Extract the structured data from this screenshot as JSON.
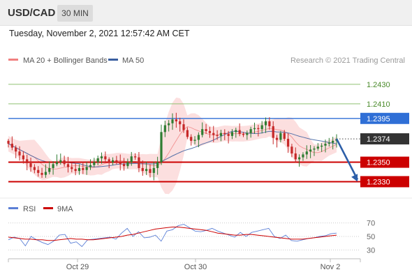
{
  "header": {
    "symbol": "USD/CAD",
    "timeframe": "30 MIN"
  },
  "timestamp": "Tuesday, November 2, 2021 12:57:42 AM CET",
  "legend": {
    "bollinger_label": "MA 20 + Bollinger Bands",
    "ma50_label": "MA 50",
    "rsi_label": "RSI",
    "rsi_ma_label": "9MA"
  },
  "copyright": "Research © 2021 Trading Central",
  "colors": {
    "bollinger": "#f08080",
    "ma50": "#3a5fa0",
    "support": "#cc0000",
    "resistance_blue": "#2f6fd6",
    "resistance_green": "#8fc070",
    "bull_candle": "#2e7d32",
    "bear_candle": "#c62828",
    "current_price_bg": "#333333",
    "arrow": "#2d5fa8"
  },
  "chart_data": [
    {
      "type": "candlestick",
      "title": "USD/CAD 30 MIN",
      "ylim": [
        1.2316,
        1.2445
      ],
      "x_tick_labels": [
        "Oct 29",
        "Oct 30",
        "Nov 2"
      ],
      "levels": [
        {
          "value": 1.243,
          "label": "1.2430",
          "kind": "resistance"
        },
        {
          "value": 1.241,
          "label": "1.2410",
          "kind": "resistance"
        },
        {
          "value": 1.2395,
          "label": "1.2395",
          "kind": "pivot"
        },
        {
          "value": 1.2374,
          "label": "1.2374",
          "kind": "current"
        },
        {
          "value": 1.235,
          "label": "1.2350",
          "kind": "support"
        },
        {
          "value": 1.233,
          "label": "1.2330",
          "kind": "target"
        }
      ],
      "close_series": [
        1.2369,
        1.2365,
        1.2361,
        1.2357,
        1.2353,
        1.2349,
        1.2345,
        1.2342,
        1.2339,
        1.2337,
        1.234,
        1.2344,
        1.2348,
        1.235,
        1.2352,
        1.2348,
        1.2345,
        1.2343,
        1.2341,
        1.2344,
        1.2342,
        1.2345,
        1.2347,
        1.235,
        1.2354,
        1.2356,
        1.2353,
        1.235,
        1.2352,
        1.235,
        1.2348,
        1.2346,
        1.235,
        1.2356,
        1.2355,
        1.2344,
        1.2341,
        1.2343,
        1.2339,
        1.2344,
        1.235,
        1.2381,
        1.2388,
        1.239,
        1.2394,
        1.2392,
        1.2389,
        1.2383,
        1.2376,
        1.2372,
        1.2373,
        1.2378,
        1.2384,
        1.2382,
        1.238,
        1.2378,
        1.2377,
        1.238,
        1.2379,
        1.2377,
        1.2381,
        1.2383,
        1.2379,
        1.2378,
        1.238,
        1.2384,
        1.2385,
        1.2384,
        1.2388,
        1.2392,
        1.2387,
        1.2375,
        1.2373,
        1.238,
        1.2374,
        1.2366,
        1.2359,
        1.2353,
        1.2355,
        1.2358,
        1.2361,
        1.2363,
        1.2364,
        1.2366,
        1.2367,
        1.2369,
        1.237,
        1.2372,
        1.2374
      ],
      "projection": {
        "from": 1.2374,
        "to": 1.233,
        "direction": "down"
      }
    },
    {
      "type": "line",
      "title": "RSI",
      "ylim": [
        20,
        80
      ],
      "y_ticks": [
        70,
        50,
        30
      ],
      "series": [
        {
          "name": "RSI",
          "values": [
            45,
            49,
            47,
            36,
            50,
            45,
            41,
            38,
            43,
            52,
            53,
            40,
            42,
            35,
            45,
            46,
            47,
            48,
            49,
            46,
            55,
            62,
            50,
            57,
            48,
            49,
            52,
            43,
            58,
            60,
            66,
            68,
            63,
            58,
            57,
            59,
            62,
            58,
            55,
            52,
            49,
            56,
            50,
            56,
            58,
            60,
            62,
            50,
            47,
            52,
            44,
            43,
            45,
            47,
            48,
            50,
            51,
            54,
            55
          ]
        },
        {
          "name": "9MA",
          "values": [
            49,
            48,
            47,
            46,
            46,
            45,
            45,
            44,
            44,
            45,
            46,
            47,
            46,
            46,
            45,
            45,
            46,
            47,
            48,
            49,
            50,
            52,
            53,
            55,
            57,
            59,
            61,
            62,
            63,
            64,
            64,
            63,
            62,
            61,
            60,
            59,
            57,
            55,
            54,
            53,
            52,
            52,
            53,
            53,
            52,
            51,
            50,
            49,
            48,
            47,
            46,
            46,
            46,
            47,
            48,
            49,
            50,
            51,
            52
          ]
        }
      ]
    }
  ]
}
